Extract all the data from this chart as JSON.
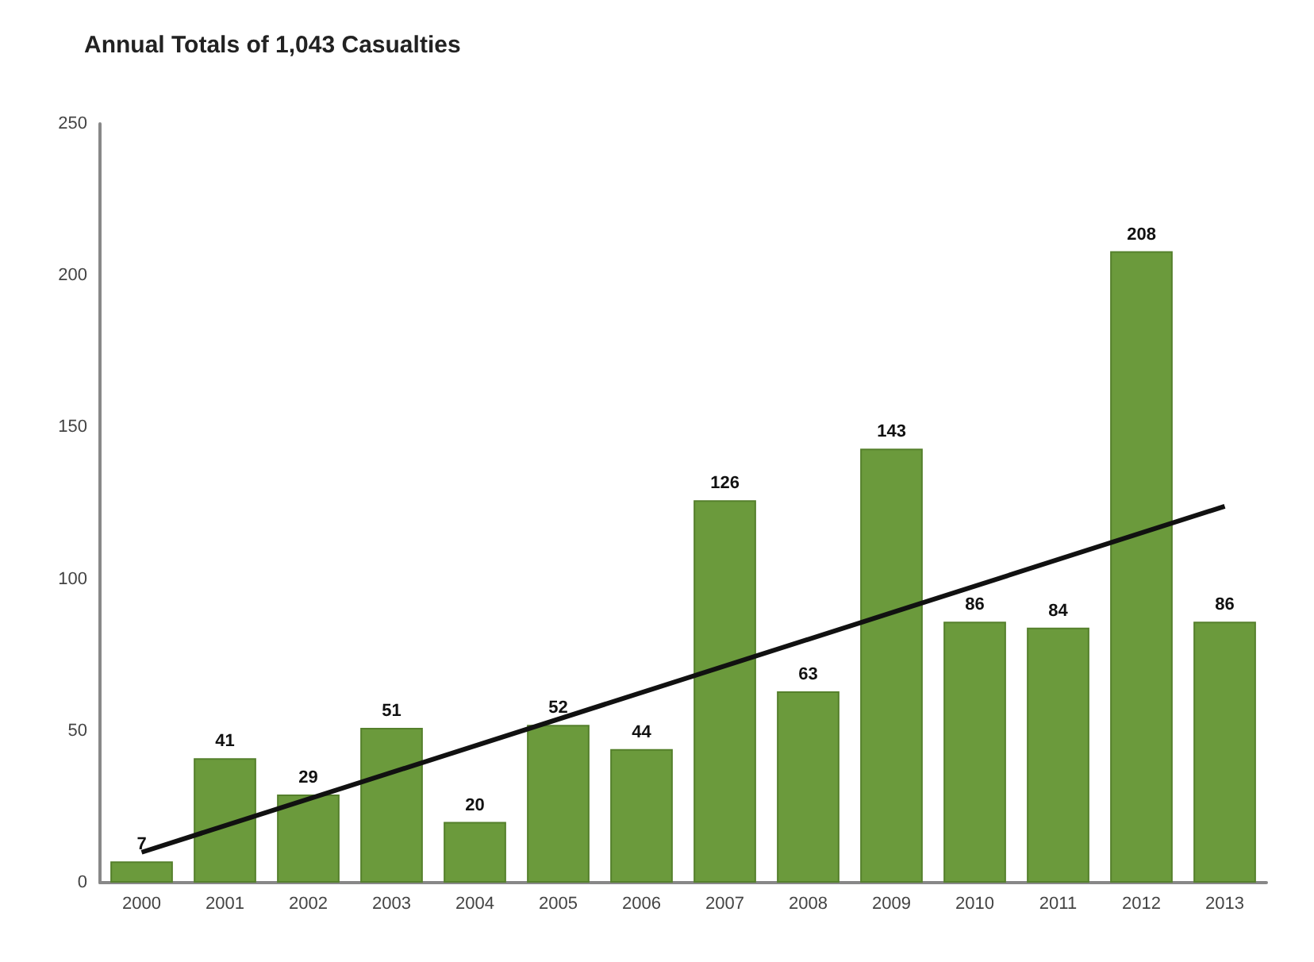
{
  "chart_data": {
    "type": "bar",
    "title": "Annual Totals of 1,043 Casualties",
    "categories": [
      "2000",
      "2001",
      "2002",
      "2003",
      "2004",
      "2005",
      "2006",
      "2007",
      "2008",
      "2009",
      "2010",
      "2011",
      "2012",
      "2013"
    ],
    "series": [
      {
        "color": "#6b9a3c",
        "values": [
          7,
          41,
          29,
          51,
          20,
          52,
          44,
          126,
          63,
          143,
          86,
          84,
          208,
          86
        ],
        "value_labels": [
          "7",
          "41",
          "29",
          "51",
          "20",
          "52",
          "44",
          "126",
          "63",
          "143",
          "86",
          "84",
          "208",
          "86"
        ]
      },
      {
        "type": "line",
        "color": "#111111",
        "values": [
          10,
          null,
          null,
          null,
          null,
          null,
          null,
          null,
          null,
          null,
          null,
          null,
          null,
          124
        ],
        "marker": "none"
      }
    ],
    "ylim": [
      0,
      250
    ],
    "yticks": [
      0,
      50,
      100,
      150,
      200,
      250
    ],
    "grid": false
  }
}
